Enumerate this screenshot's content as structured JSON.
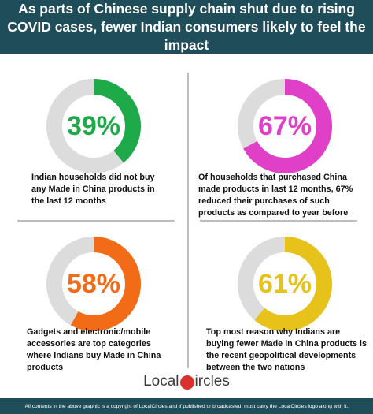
{
  "header": {
    "title": "As parts of Chinese supply chain shut due to rising COVID cases, fewer Indian consumers likely to feel the impact"
  },
  "chart_data": [
    {
      "type": "pie",
      "values": [
        39
      ],
      "label": "39%",
      "color": "#1faa4a",
      "caption": "Indian households did not buy any Made in China products in the last 12 months"
    },
    {
      "type": "pie",
      "values": [
        67
      ],
      "label": "67%",
      "color": "#e040c8",
      "caption": "Of households that purchased China made products in last 12 months, 67% reduced their purchases of such products as compared to year before"
    },
    {
      "type": "pie",
      "values": [
        58
      ],
      "label": "58%",
      "color": "#f26b16",
      "caption": "Gadgets and electronic/mobile accessories are top categories where Indians buy Made in China products"
    },
    {
      "type": "pie",
      "values": [
        61
      ],
      "label": "61%",
      "color": "#e6c21a",
      "caption": "Top most reason why Indians are buying fewer Made in China products is the recent geopolitical developments between the two nations"
    }
  ],
  "colors": {
    "track": "#dcdcdc",
    "brand_dark": "#1f4e5a",
    "logo_red": "#d9312b"
  },
  "logo": {
    "left": "Local",
    "right": "ircles"
  },
  "footer": {
    "text": "All contents in the above graphic is a copyright of LocalCircles and if published or broadcasted, must carry the LocalCircles logo along with it."
  }
}
